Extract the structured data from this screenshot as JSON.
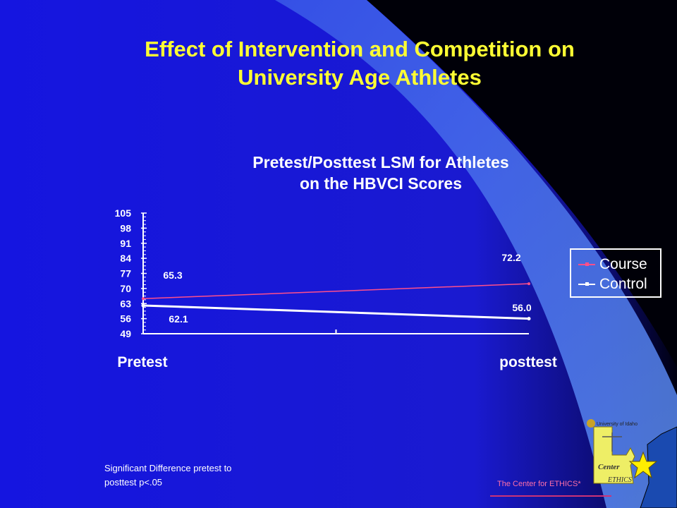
{
  "slide": {
    "title_line1": "Effect of Intervention and Competition on",
    "title_line2": "University Age Athletes",
    "note_line1": "Significant Difference pretest to",
    "note_line2": "posttest p<.05",
    "footer": "The Center for ETHICS*",
    "logo_text": "University of Idaho",
    "logo_center": "Center",
    "logo_ethics": "ETHICS",
    "colors": {
      "title": "#ffff33",
      "course": "#ff4f8b",
      "control": "#ffffff",
      "background": "#1a1acc"
    }
  },
  "chart_data": {
    "type": "line",
    "title_line1": "Pretest/Posttest LSM for Athletes",
    "title_line2": "on the HBVCI Scores",
    "categories": [
      "Pretest",
      "posttest"
    ],
    "yticks": [
      49,
      56,
      63,
      70,
      77,
      84,
      91,
      98,
      105
    ],
    "ylim": [
      49,
      105
    ],
    "legend_position": "right",
    "series": [
      {
        "name": "Course",
        "values": [
          65.3,
          72.2
        ],
        "labels": [
          "65.3",
          "72.2"
        ],
        "color": "#ff4f8b"
      },
      {
        "name": "Control",
        "values": [
          62.1,
          56.0
        ],
        "labels": [
          "62.1",
          "56.0"
        ],
        "color": "#ffffff"
      }
    ]
  }
}
